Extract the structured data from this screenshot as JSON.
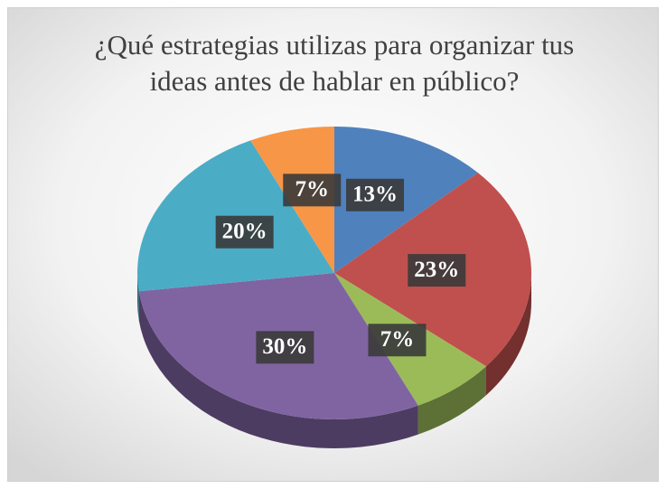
{
  "chart_data": {
    "type": "pie3d",
    "title": "¿Qué estrategias utilizas para organizar tus ideas antes de hablar en público?",
    "categories": [
      null,
      null,
      null,
      null,
      null,
      null
    ],
    "values": [
      13,
      23,
      7,
      30,
      20,
      7
    ],
    "value_labels": [
      "13%",
      "23%",
      "7%",
      "30%",
      "20%",
      "7%"
    ],
    "colors": [
      "#4f81bd",
      "#c0504d",
      "#9bbb59",
      "#8064a2",
      "#4bacc6",
      "#f79646"
    ]
  }
}
